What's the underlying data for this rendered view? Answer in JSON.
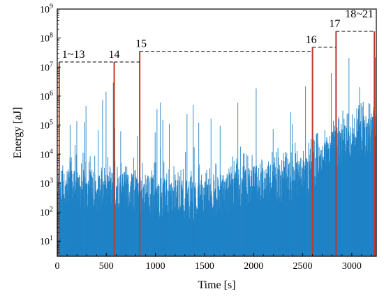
{
  "chart_data": {
    "type": "bar",
    "xlabel": "Time [s]",
    "ylabel": "Energy [aJ]",
    "xlim": [
      0,
      3250
    ],
    "ylim": [
      3,
      1000000000
    ],
    "yscale": "log",
    "grid": false,
    "colors": {
      "bars": "#1f82c6",
      "events": "#c0392b",
      "threshold": "#000000"
    },
    "x_ticks": [
      0,
      500,
      1000,
      1500,
      2000,
      2500,
      3000
    ],
    "y_ticks": [
      {
        "value": 10,
        "mantissa": "10",
        "exponent": "1"
      },
      {
        "value": 100,
        "mantissa": "10",
        "exponent": "2"
      },
      {
        "value": 1000,
        "mantissa": "10",
        "exponent": "3"
      },
      {
        "value": 10000,
        "mantissa": "10",
        "exponent": "4"
      },
      {
        "value": 100000,
        "mantissa": "10",
        "exponent": "5"
      },
      {
        "value": 1000000,
        "mantissa": "10",
        "exponent": "6"
      },
      {
        "value": 10000000,
        "mantissa": "10",
        "exponent": "7"
      },
      {
        "value": 100000000,
        "mantissa": "10",
        "exponent": "8"
      },
      {
        "value": 1000000000,
        "mantissa": "10",
        "exponent": "9"
      }
    ],
    "events": [
      {
        "label": "1~13",
        "time": 20,
        "energy": 15000000
      },
      {
        "label": "14",
        "time": 580,
        "energy": 15000000
      },
      {
        "label": "15",
        "time": 840,
        "energy": 35000000
      },
      {
        "label": "16",
        "time": 2600,
        "energy": 48000000
      },
      {
        "label": "17",
        "time": 2840,
        "energy": 170000000
      },
      {
        "label": "18~21",
        "time": 3230,
        "energy": 170000000
      }
    ],
    "thresholds": [
      {
        "x_start": 20,
        "x_end": 580,
        "energy": 15000000
      },
      {
        "x_start": 580,
        "x_end": 840,
        "energy": 15000000
      },
      {
        "x_start": 840,
        "x_end": 2600,
        "energy": 35000000
      },
      {
        "x_start": 2600,
        "x_end": 2840,
        "energy": 48000000
      },
      {
        "x_start": 2840,
        "x_end": 3230,
        "energy": 170000000
      }
    ],
    "envelope": {
      "time": [
        0,
        100,
        200,
        300,
        400,
        500,
        600,
        700,
        800,
        900,
        1000,
        1200,
        1400,
        1600,
        1800,
        2000,
        2200,
        2400,
        2600,
        2800,
        2900,
        3000,
        3100,
        3200,
        3250
      ],
      "typical_energy": [
        300,
        600,
        800,
        700,
        600,
        500,
        700,
        600,
        500,
        500,
        400,
        300,
        300,
        400,
        600,
        900,
        1200,
        1500,
        2500,
        15000,
        25000,
        25000,
        40000,
        60000,
        60000
      ],
      "peak_energy": [
        5000000,
        3000000,
        2000000,
        1500000,
        1500000,
        2000000,
        5000000,
        2000000,
        1500000,
        1500000,
        1000000,
        1000000,
        1000000,
        2000000,
        3000000,
        5000000,
        5000000,
        6000000,
        10000000,
        30000000,
        40000000,
        40000000,
        40000000,
        50000000,
        50000000
      ]
    }
  }
}
